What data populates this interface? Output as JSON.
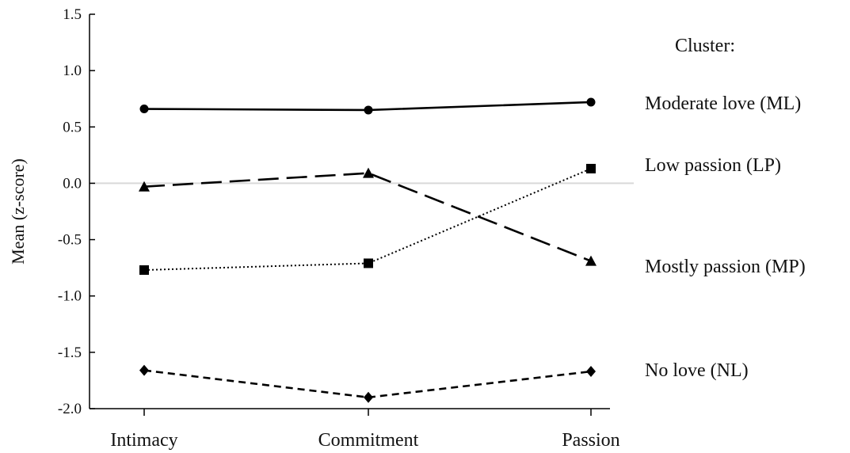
{
  "chart_data": {
    "type": "line",
    "categories": [
      "Intimacy",
      "Commitment",
      "Passion"
    ],
    "ylabel": "Mean (z-score)",
    "xlabel": "",
    "ylim": [
      -2.0,
      1.5
    ],
    "yticks": [
      "1.5",
      "1.0",
      "0.5",
      "0.0",
      "-0.5",
      "-1.0",
      "-1.5",
      "-2.0"
    ],
    "ytick_values": [
      1.5,
      1.0,
      0.5,
      0.0,
      -0.5,
      -1.0,
      -1.5,
      -2.0
    ],
    "zero_line": true,
    "grid": false,
    "legend": {
      "title": "Cluster:",
      "placement": "right"
    },
    "series": [
      {
        "name": "Moderate love (ML)",
        "values": [
          0.66,
          0.65,
          0.72
        ],
        "line_style": "solid",
        "marker": "circle",
        "color": "#000000"
      },
      {
        "name": "Mostly passion (MP)",
        "values": [
          -0.77,
          -0.71,
          0.13
        ],
        "line_style": "dotted",
        "marker": "square",
        "color": "#000000"
      },
      {
        "name": "Low passion (LP)",
        "values": [
          -0.03,
          0.09,
          -0.69
        ],
        "line_style": "long-dash",
        "marker": "triangle",
        "color": "#000000"
      },
      {
        "name": "No love (NL)",
        "values": [
          -1.66,
          -1.9,
          -1.67
        ],
        "line_style": "short-dash",
        "marker": "diamond",
        "color": "#000000"
      }
    ],
    "legend_order": [
      0,
      2,
      1,
      3
    ]
  }
}
